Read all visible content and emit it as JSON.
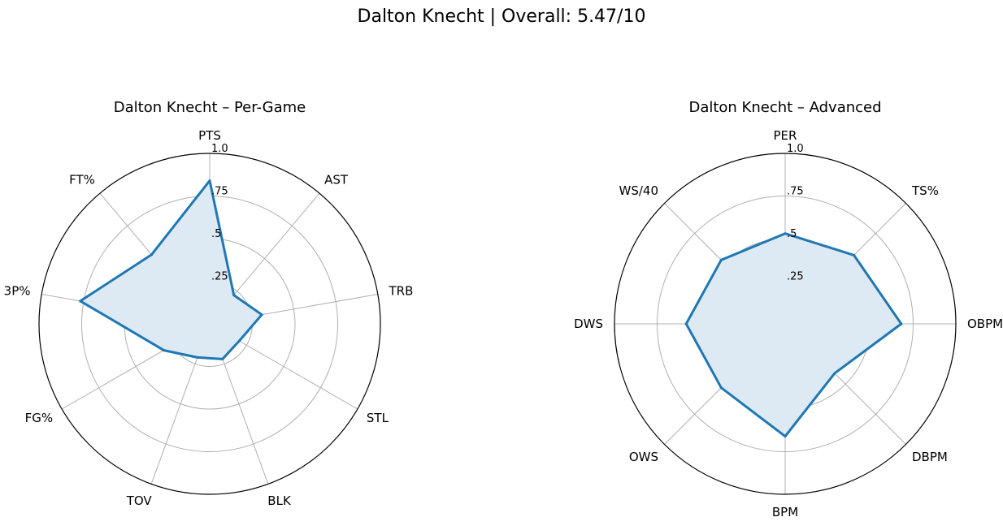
{
  "figure": {
    "title": "Dalton Knecht | Overall: 5.47/10"
  },
  "chart_data": [
    {
      "type": "radar",
      "title": "Dalton Knecht – Per-Game",
      "categories": [
        "PTS",
        "AST",
        "TRB",
        "STL",
        "BLK",
        "TOV",
        "FG%",
        "3P%",
        "FT%"
      ],
      "values": [
        0.84,
        0.22,
        0.31,
        0.2,
        0.22,
        0.21,
        0.31,
        0.77,
        0.53
      ],
      "rlim": [
        0,
        1
      ],
      "rticks": [
        0.25,
        0.5,
        0.75,
        1.0
      ],
      "rtick_labels": [
        ".25",
        ".5",
        ".75",
        "1.0"
      ],
      "color": "#1f77b4",
      "fill_color": "#dde9f3",
      "grid": true
    },
    {
      "type": "radar",
      "title": "Dalton Knecht – Advanced",
      "categories": [
        "PER",
        "TS%",
        "OBPM",
        "DBPM",
        "BPM",
        "OWS",
        "DWS",
        "WS/40"
      ],
      "values": [
        0.53,
        0.57,
        0.68,
        0.41,
        0.66,
        0.53,
        0.58,
        0.53
      ],
      "rlim": [
        0,
        1
      ],
      "rticks": [
        0.25,
        0.5,
        0.75,
        1.0
      ],
      "rtick_labels": [
        ".25",
        ".5",
        ".75",
        "1.0"
      ],
      "color": "#1f77b4",
      "fill_color": "#dde9f3",
      "grid": true
    }
  ]
}
